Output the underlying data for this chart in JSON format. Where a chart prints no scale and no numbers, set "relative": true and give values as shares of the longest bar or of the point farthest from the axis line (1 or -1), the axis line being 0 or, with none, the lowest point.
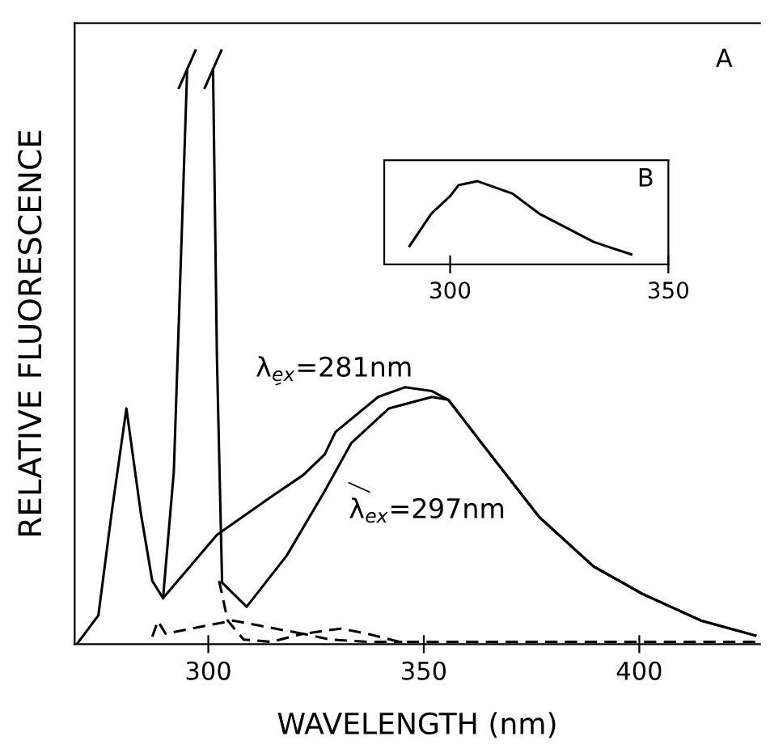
{
  "chart_data": [
    {
      "type": "line",
      "xlabel": "WAVELENGTH (nm)",
      "ylabel": "RELATIVE FLUORESCENCE",
      "relative": true,
      "xlim": [
        269,
        428
      ],
      "xticks": [
        300,
        350,
        400
      ],
      "grid": false,
      "annotations": [
        "A"
      ],
      "series": [
        {
          "name": "λ$_{ex}$=281nm",
          "color": "#000000",
          "line_style": "solid",
          "x": [
            269.5,
            274.5,
            277.6,
            281.0,
            284.3,
            287.0,
            289.5,
            302.0,
            314.5,
            322.0,
            327.0,
            329.5,
            339.4,
            345.7,
            351.9,
            355.7,
            364.4,
            376.9,
            389.4,
            400.6,
            414.3,
            426.9
          ],
          "values": [
            0.0,
            0.05,
            0.23,
            0.41,
            0.23,
            0.11,
            0.08,
            0.19,
            0.256,
            0.294,
            0.33,
            0.369,
            0.43,
            0.447,
            0.44,
            0.425,
            0.34,
            0.22,
            0.135,
            0.088,
            0.041,
            0.015
          ]
        },
        {
          "name": "λ$_{ex}$=297nm",
          "color": "#000000",
          "line_style": "solid",
          "x": [
            289.5,
            292.0,
            294.0,
            295.1,
            298.0,
            301.1,
            302.0,
            303.2,
            308.9,
            318.2,
            327.0,
            333.2,
            341.9,
            351.9,
            355.7,
            364.4,
            376.9,
            389.4,
            400.6,
            414.3,
            426.9
          ],
          "values": [
            0.08,
            0.3,
            0.75,
            1.0,
            null,
            1.0,
            0.5,
            0.107,
            0.065,
            0.154,
            0.266,
            0.35,
            0.41,
            0.43,
            0.425,
            0.34,
            0.22,
            0.135,
            0.088,
            0.041,
            0.015
          ]
        },
        {
          "color": "#000000",
          "line_style": "dashed",
          "x": [
            287.0,
            288.3,
            290.1,
            299.5,
            305.7,
            312.0,
            322.0,
            330.7,
            337.0,
            344.4,
            360,
            380,
            400,
            426.9
          ],
          "values": [
            0.013,
            0.04,
            0.018,
            0.032,
            0.041,
            0.032,
            0.018,
            0.027,
            0.018,
            0.004,
            0.004,
            0.004,
            0.004,
            0.004
          ]
        },
        {
          "color": "#000000",
          "line_style": "dashed",
          "x": [
            302.5,
            304.5,
            308.2,
            314.5,
            322.0,
            328.2,
            337.0,
            345.0
          ],
          "values": [
            0.11,
            0.041,
            0.008,
            0.004,
            0.018,
            0.008,
            0.004,
            0.004
          ]
        }
      ]
    },
    {
      "type": "line",
      "title": "B",
      "relative": true,
      "xlim": [
        284.9,
        350
      ],
      "xticks": [
        300,
        350
      ],
      "grid": false,
      "series": [
        {
          "color": "#000000",
          "line_style": "solid",
          "x": [
            290.7,
            295.7,
            300.0,
            301.9,
            306.2,
            314.3,
            320.4,
            332.9,
            341.5
          ],
          "values": [
            0.22,
            0.61,
            0.82,
            0.95,
            1.0,
            0.85,
            0.61,
            0.27,
            0.12
          ]
        }
      ]
    }
  ]
}
